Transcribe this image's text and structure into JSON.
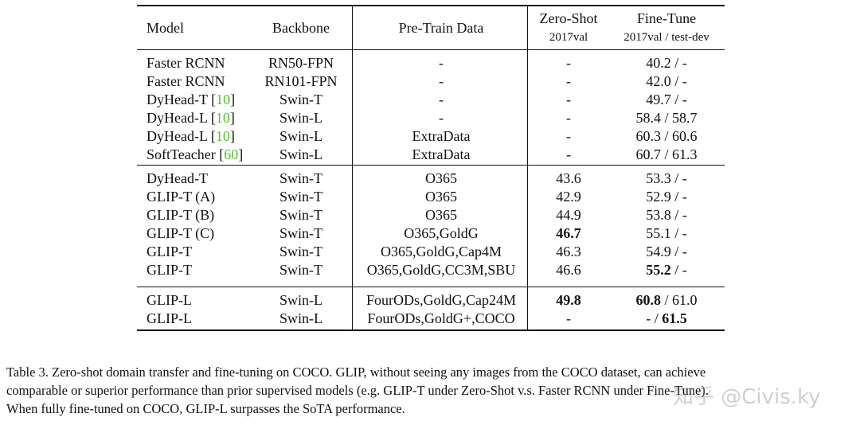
{
  "header": {
    "model": "Model",
    "backbone": "Backbone",
    "pretrain": "Pre-Train Data",
    "zeroshot": "Zero-Shot",
    "zeroshot_sub": "2017val",
    "finetune": "Fine-Tune",
    "finetune_sub": "2017val / test-dev"
  },
  "rows": [
    {
      "model": "Faster RCNN",
      "cite": "",
      "backbone": "RN50-FPN",
      "data": "-",
      "zs": "-",
      "ft_a": "40.2",
      "ft_b": "-"
    },
    {
      "model": "Faster RCNN",
      "cite": "",
      "backbone": "RN101-FPN",
      "data": "-",
      "zs": "-",
      "ft_a": "42.0",
      "ft_b": "-"
    },
    {
      "model": "DyHead-T",
      "cite": "10",
      "backbone": "Swin-T",
      "data": "-",
      "zs": "-",
      "ft_a": "49.7",
      "ft_b": "-"
    },
    {
      "model": "DyHead-L",
      "cite": "10",
      "backbone": "Swin-L",
      "data": "-",
      "zs": "-",
      "ft_a": "58.4",
      "ft_b": "58.7"
    },
    {
      "model": "DyHead-L",
      "cite": "10",
      "backbone": "Swin-L",
      "data": "ExtraData",
      "zs": "-",
      "ft_a": "60.3",
      "ft_b": "60.6"
    },
    {
      "model": "SoftTeacher",
      "cite": "60",
      "backbone": "Swin-L",
      "data": "ExtraData",
      "zs": "-",
      "ft_a": "60.7",
      "ft_b": "61.3"
    },
    {
      "model": "DyHead-T",
      "cite": "",
      "backbone": "Swin-T",
      "data": "O365",
      "zs": "43.6",
      "ft_a": "53.3",
      "ft_b": "-"
    },
    {
      "model": "GLIP-T (A)",
      "cite": "",
      "backbone": "Swin-T",
      "data": "O365",
      "zs": "42.9",
      "ft_a": "52.9",
      "ft_b": "-"
    },
    {
      "model": "GLIP-T (B)",
      "cite": "",
      "backbone": "Swin-T",
      "data": "O365",
      "zs": "44.9",
      "ft_a": "53.8",
      "ft_b": "-"
    },
    {
      "model": "GLIP-T (C)",
      "cite": "",
      "backbone": "Swin-T",
      "data": "O365,GoldG",
      "zs": "46.7",
      "zs_bold": true,
      "ft_a": "55.1",
      "ft_b": "-"
    },
    {
      "model": "GLIP-T",
      "cite": "",
      "backbone": "Swin-T",
      "data": "O365,GoldG,Cap4M",
      "zs": "46.3",
      "ft_a": "54.9",
      "ft_b": "-"
    },
    {
      "model": "GLIP-T",
      "cite": "",
      "backbone": "Swin-T",
      "data": "O365,GoldG,CC3M,SBU",
      "zs": "46.6",
      "ft_a": "55.2",
      "ft_a_bold": true,
      "ft_b": "-"
    },
    {
      "model": "GLIP-L",
      "cite": "",
      "backbone": "Swin-L",
      "data": "FourODs,GoldG,Cap24M",
      "zs": "49.8",
      "zs_bold": true,
      "ft_a": "60.8",
      "ft_a_bold": true,
      "ft_b": "61.0"
    },
    {
      "model": "GLIP-L",
      "cite": "",
      "backbone": "Swin-L",
      "data": "FourODs,GoldG+,COCO",
      "zs": "-",
      "ft_a": "-",
      "ft_b": "61.5",
      "ft_b_bold": true
    }
  ],
  "caption": {
    "line1": "Table 3. Zero-shot domain transfer and fine-tuning on COCO. GLIP, without seeing any images from the COCO dataset, can achieve",
    "line2": "comparable or superior performance than prior supervised models (e.g. GLIP-T under Zero-Shot v.s. Faster RCNN under Fine-Tune).",
    "line3": "When fully fine-tuned on COCO, GLIP-L surpasses the SoTA performance."
  },
  "watermark": "知乎 @Civis.ky"
}
